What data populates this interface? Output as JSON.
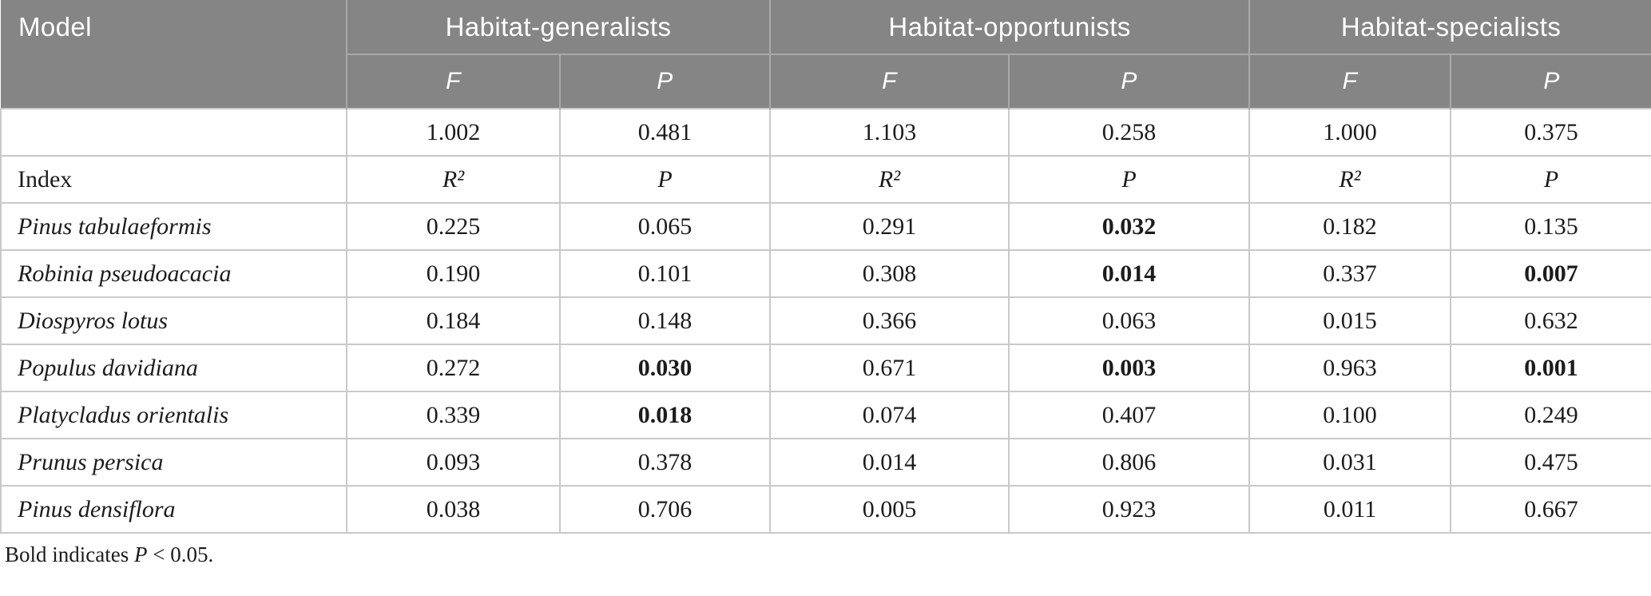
{
  "colors": {
    "header_bg": "#858585",
    "header_text": "#ffffff",
    "header_divider": "#a9a9a9",
    "body_border": "#c9c9c9",
    "body_text": "#1c1c1c",
    "page_bg": "#ffffff"
  },
  "table": {
    "header": {
      "model_label": "Model",
      "groups": [
        {
          "label": "Habitat-generalists"
        },
        {
          "label": "Habitat-opportunists"
        },
        {
          "label": "Habitat-specialists"
        }
      ],
      "sub_columns": [
        "F",
        "P",
        "F",
        "P",
        "F",
        "P"
      ]
    },
    "rows": [
      {
        "model": {
          "text": "",
          "italic": false
        },
        "cells": [
          {
            "text": "1.002"
          },
          {
            "text": "0.481"
          },
          {
            "text": "1.103"
          },
          {
            "text": "0.258"
          },
          {
            "text": "1.000"
          },
          {
            "text": "0.375"
          }
        ]
      },
      {
        "model": {
          "text": "Index",
          "italic": false
        },
        "cells": [
          {
            "text": "R²",
            "italic": true
          },
          {
            "text": "P",
            "italic": true
          },
          {
            "text": "R²",
            "italic": true
          },
          {
            "text": "P",
            "italic": true
          },
          {
            "text": "R²",
            "italic": true
          },
          {
            "text": "P",
            "italic": true
          }
        ]
      },
      {
        "model": {
          "text": "Pinus tabulaeformis",
          "italic": true
        },
        "cells": [
          {
            "text": "0.225"
          },
          {
            "text": "0.065"
          },
          {
            "text": "0.291"
          },
          {
            "text": "0.032",
            "bold": true
          },
          {
            "text": "0.182"
          },
          {
            "text": "0.135"
          }
        ]
      },
      {
        "model": {
          "text": "Robinia pseudoacacia",
          "italic": true
        },
        "cells": [
          {
            "text": "0.190"
          },
          {
            "text": "0.101"
          },
          {
            "text": "0.308"
          },
          {
            "text": "0.014",
            "bold": true
          },
          {
            "text": "0.337"
          },
          {
            "text": "0.007",
            "bold": true
          }
        ]
      },
      {
        "model": {
          "text": "Diospyros lotus",
          "italic": true
        },
        "cells": [
          {
            "text": "0.184"
          },
          {
            "text": "0.148"
          },
          {
            "text": "0.366"
          },
          {
            "text": "0.063"
          },
          {
            "text": "0.015"
          },
          {
            "text": "0.632"
          }
        ]
      },
      {
        "model": {
          "text": "Populus davidiana",
          "italic": true
        },
        "cells": [
          {
            "text": "0.272"
          },
          {
            "text": "0.030",
            "bold": true
          },
          {
            "text": "0.671"
          },
          {
            "text": "0.003",
            "bold": true
          },
          {
            "text": "0.963"
          },
          {
            "text": "0.001",
            "bold": true
          }
        ]
      },
      {
        "model": {
          "text": "Platycladus orientalis",
          "italic": true
        },
        "cells": [
          {
            "text": "0.339"
          },
          {
            "text": "0.018",
            "bold": true
          },
          {
            "text": "0.074"
          },
          {
            "text": "0.407"
          },
          {
            "text": "0.100"
          },
          {
            "text": "0.249"
          }
        ]
      },
      {
        "model": {
          "text": "Prunus persica",
          "italic": true
        },
        "cells": [
          {
            "text": "0.093"
          },
          {
            "text": "0.378"
          },
          {
            "text": "0.014"
          },
          {
            "text": "0.806"
          },
          {
            "text": "0.031"
          },
          {
            "text": "0.475"
          }
        ]
      },
      {
        "model": {
          "text": "Pinus densiflora",
          "italic": true
        },
        "cells": [
          {
            "text": "0.038"
          },
          {
            "text": "0.706"
          },
          {
            "text": "0.005"
          },
          {
            "text": "0.923"
          },
          {
            "text": "0.011"
          },
          {
            "text": "0.667"
          }
        ]
      }
    ]
  },
  "footnote": {
    "prefix": "Bold indicates ",
    "p_symbol": "P",
    "suffix": " < 0.05."
  }
}
